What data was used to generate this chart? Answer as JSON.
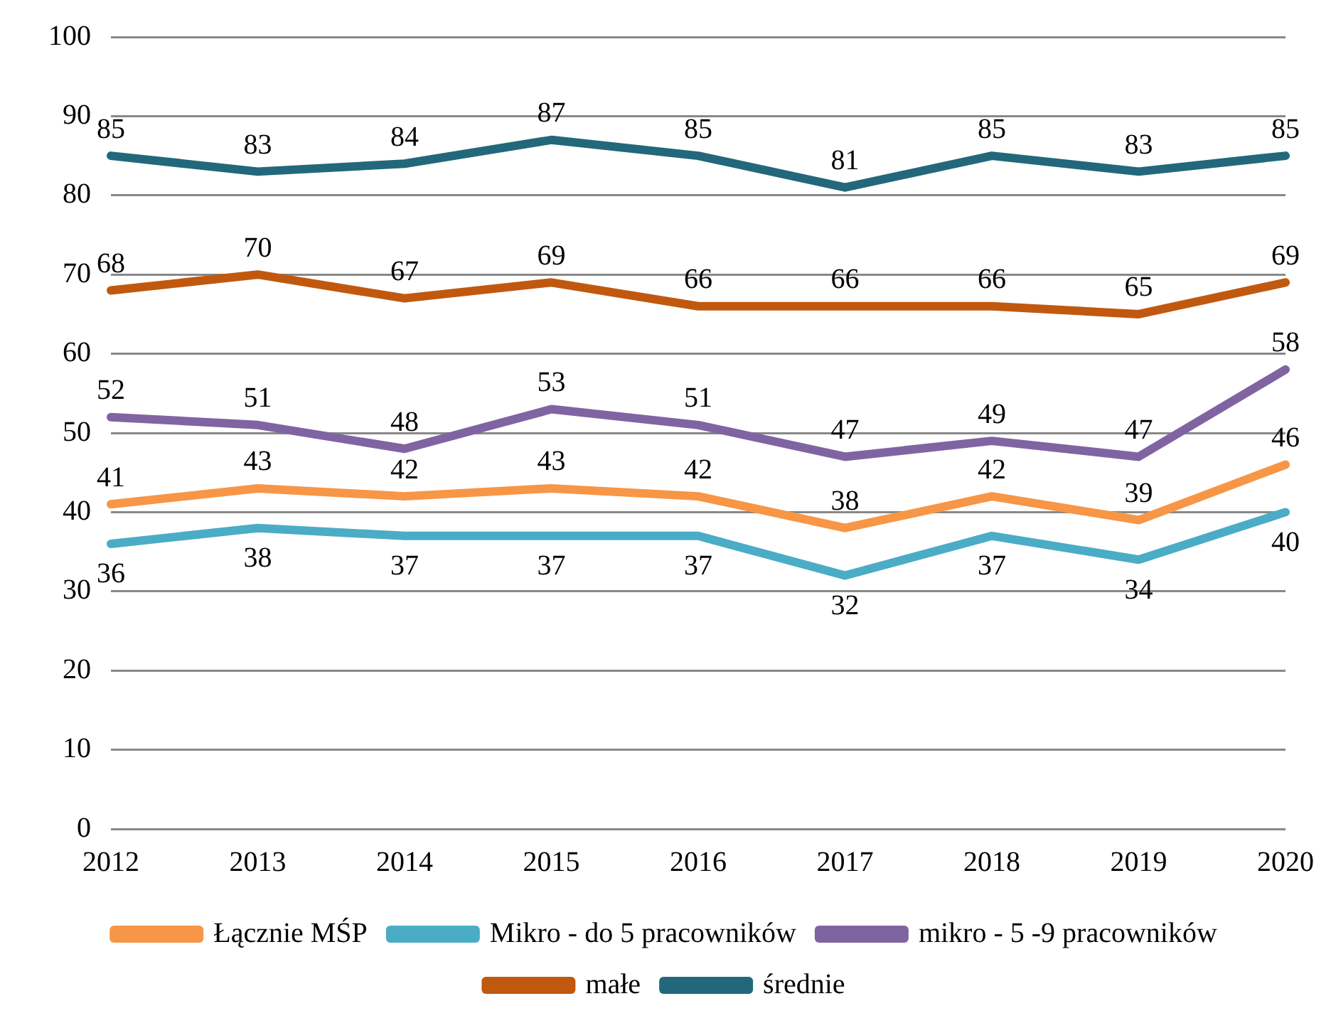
{
  "chart_data": {
    "type": "line",
    "categories": [
      "2012",
      "2013",
      "2014",
      "2015",
      "2016",
      "2017",
      "2018",
      "2019",
      "2020"
    ],
    "series": [
      {
        "name": "Łącznie MŚP",
        "color": "#f79646",
        "values": [
          41,
          43,
          42,
          43,
          42,
          38,
          42,
          39,
          46
        ]
      },
      {
        "name": "Mikro - do 5 pracowników",
        "color": "#4bacc6",
        "values": [
          36,
          38,
          37,
          37,
          37,
          32,
          37,
          34,
          40
        ]
      },
      {
        "name": "mikro - 5 -9 pracowników",
        "color": "#8064a2",
        "values": [
          52,
          51,
          48,
          53,
          51,
          47,
          49,
          47,
          58
        ]
      },
      {
        "name": "małe",
        "color": "#c0590f",
        "values": [
          68,
          70,
          67,
          69,
          66,
          66,
          66,
          65,
          69
        ]
      },
      {
        "name": "średnie",
        "color": "#23687a",
        "values": [
          85,
          83,
          84,
          87,
          85,
          81,
          85,
          83,
          85
        ]
      }
    ],
    "ylim": [
      0,
      100
    ],
    "yticks": [
      0,
      10,
      20,
      30,
      40,
      50,
      60,
      70,
      80,
      90,
      100
    ],
    "grid": "y",
    "legend": "bottom",
    "marker": "none",
    "line_style": "solid",
    "data_labels": true
  }
}
